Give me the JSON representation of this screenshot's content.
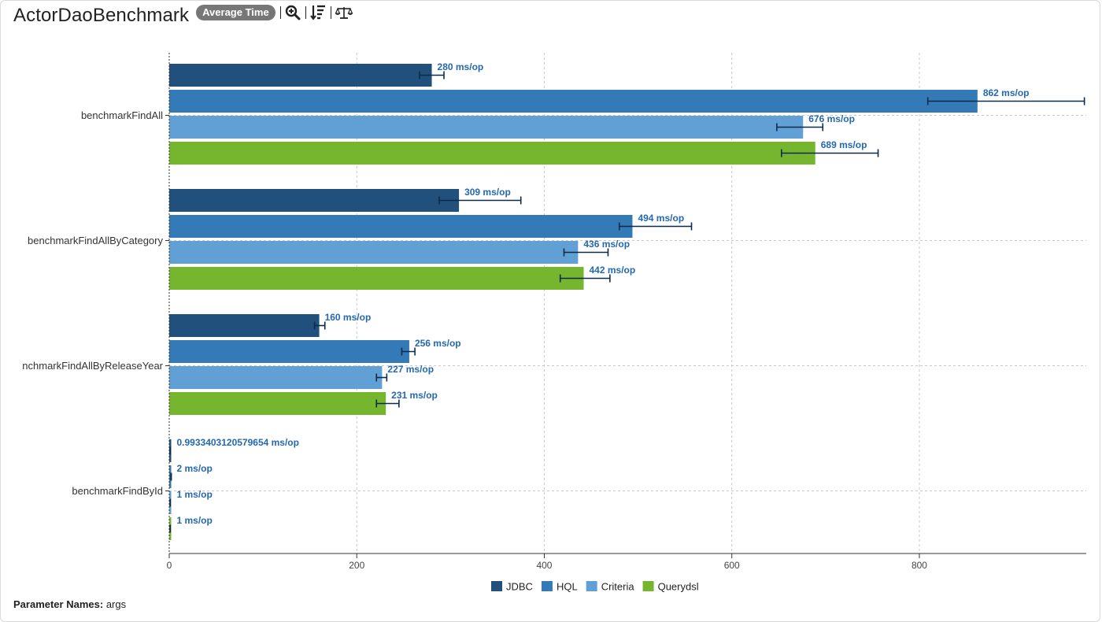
{
  "header": {
    "title": "ActorDaoBenchmark",
    "mode_badge": "Average Time",
    "tools": [
      "zoom-in-icon",
      "sort-icon",
      "balance-scale-icon"
    ]
  },
  "footer": {
    "param_label": "Parameter Names:",
    "param_value": "args"
  },
  "chart_data": {
    "type": "bar",
    "orientation": "horizontal",
    "categories": [
      "benchmarkFindAll",
      "benchmarkFindAllByCategory",
      "nchmarkFindAllByReleaseYear",
      "benchmarkFindById"
    ],
    "series": [
      {
        "name": "JDBC",
        "color": "#22507c",
        "values": [
          280,
          309,
          160,
          0.9933403120579654
        ],
        "labels": [
          "280 ms/op",
          "309 ms/op",
          "160 ms/op",
          "0.9933403120579654 ms/op"
        ],
        "error_low": [
          267,
          288,
          155,
          0.9
        ],
        "error_high": [
          293,
          375,
          166,
          1.1
        ]
      },
      {
        "name": "HQL",
        "color": "#337ab7",
        "values": [
          862,
          494,
          256,
          2
        ],
        "labels": [
          "862 ms/op",
          "494 ms/op",
          "256 ms/op",
          "2 ms/op"
        ],
        "error_low": [
          809,
          480,
          248,
          1.8
        ],
        "error_high": [
          976,
          557,
          262,
          2.2
        ]
      },
      {
        "name": "Criteria",
        "color": "#61a0d4",
        "values": [
          676,
          436,
          227,
          1
        ],
        "labels": [
          "676 ms/op",
          "436 ms/op",
          "227 ms/op",
          "1 ms/op"
        ],
        "error_low": [
          648,
          421,
          221,
          0.9
        ],
        "error_high": [
          697,
          468,
          232,
          1.1
        ]
      },
      {
        "name": "Querydsl",
        "color": "#76b52e",
        "values": [
          689,
          442,
          231,
          1
        ],
        "labels": [
          "689 ms/op",
          "442 ms/op",
          "231 ms/op",
          "1 ms/op"
        ],
        "error_low": [
          653,
          417,
          221,
          0.9
        ],
        "error_high": [
          756,
          470,
          245,
          1.1
        ]
      }
    ],
    "x_ticks": [
      0,
      200,
      400,
      600,
      800
    ],
    "xlim": [
      0,
      978
    ],
    "grid": true,
    "legend_position": "bottom-center",
    "label_color": "#2468b0",
    "error_bar_color": "#0d2a4a"
  }
}
